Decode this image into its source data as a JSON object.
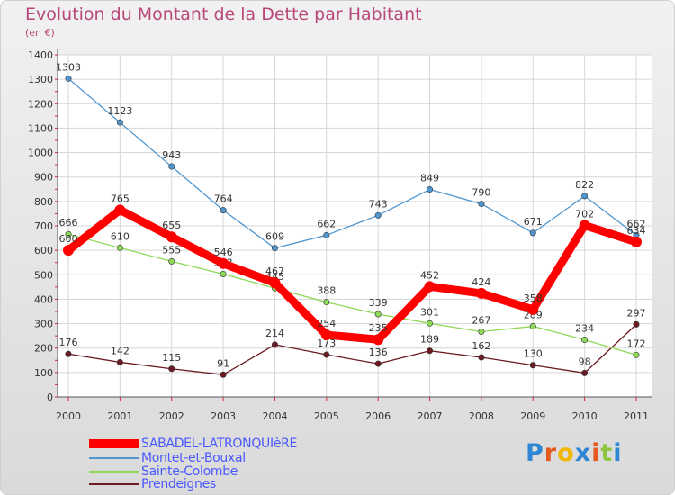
{
  "title": "Evolution du Montant de la Dette par Habitant",
  "subtitle": "(en €)",
  "logo_text": "Proxiti",
  "chart_data": {
    "type": "line",
    "x": [
      "2000",
      "2001",
      "2002",
      "2003",
      "2004",
      "2005",
      "2006",
      "2007",
      "2008",
      "2009",
      "2010",
      "2011"
    ],
    "ylim": [
      0,
      1400
    ],
    "yticks": [
      "0",
      "100",
      "200",
      "300",
      "400",
      "500",
      "600",
      "700",
      "800",
      "900",
      "1000",
      "1100",
      "1200",
      "1300",
      "1400"
    ],
    "grid": true,
    "legend_position": "bottom-left",
    "series": [
      {
        "name": "Prendeignes",
        "color": "#6b1b21",
        "values": [
          176,
          142,
          115,
          91,
          214,
          173,
          136,
          189,
          162,
          130,
          98,
          297
        ],
        "labels": [
          "176",
          "142",
          "115",
          "91",
          "214",
          "173",
          "136",
          "189",
          "162",
          "130",
          "98",
          "297"
        ]
      },
      {
        "name": "Sainte-Colombe",
        "color": "#8ed957",
        "values": [
          666,
          610,
          555,
          503,
          445,
          388,
          339,
          301,
          267,
          289,
          234,
          172
        ],
        "labels": [
          "666",
          "610",
          "555",
          "503",
          "445",
          "388",
          "339",
          "301",
          "267",
          "289",
          "234",
          "172"
        ]
      },
      {
        "name": "Montet-et-Bouxal",
        "color": "#4f96d0",
        "values": [
          1303,
          1123,
          943,
          764,
          609,
          662,
          743,
          849,
          790,
          671,
          822,
          662
        ],
        "labels": [
          "1303",
          "1123",
          "943",
          "764",
          "609",
          "662",
          "743",
          "849",
          "790",
          "671",
          "822",
          "662"
        ]
      },
      {
        "name": "SABADEL-LATRONQUIèRE",
        "color": "#ff0000",
        "values": [
          600,
          765,
          655,
          546,
          467,
          254,
          235,
          452,
          424,
          358,
          702,
          634
        ],
        "labels": [
          "600",
          "765",
          "655",
          "546",
          "467",
          "254",
          "235",
          "452",
          "424",
          "358",
          "702",
          "634"
        ]
      }
    ]
  },
  "legend": [
    {
      "label": "SABADEL-LATRONQUIèRE",
      "color": "#ff0000"
    },
    {
      "label": "Montet-et-Bouxal",
      "color": "#4f96d0"
    },
    {
      "label": "Sainte-Colombe",
      "color": "#8ed957"
    },
    {
      "label": "Prendeignes",
      "color": "#6b1b21"
    }
  ],
  "logo_colors": [
    "#2f86d4",
    "#e65a1f",
    "#f2b600",
    "#2f86d4",
    "#e65a1f",
    "#8cc63f",
    "#2f86d4"
  ]
}
